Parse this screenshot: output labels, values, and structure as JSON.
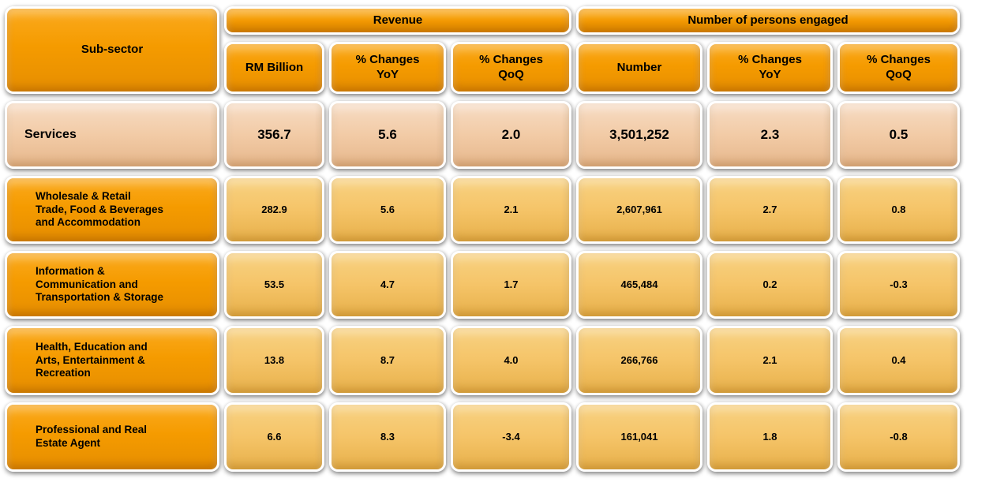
{
  "colors": {
    "header_orange": "#F59B00",
    "services_fill": "#F2CBA6",
    "data_fill": "#F5C468",
    "cell_border": "#FFFFFF",
    "text": "#000000"
  },
  "chart_data": {
    "type": "table",
    "corner_header": "Sub-sector",
    "column_groups": [
      {
        "label": "Revenue",
        "columns": [
          "RM Billion",
          "% Changes\nYoY",
          "% Changes\nQoQ"
        ]
      },
      {
        "label": "Number of persons engaged",
        "columns": [
          "Number",
          "% Changes\nYoY",
          "% Changes\nQoQ"
        ]
      }
    ],
    "rows": [
      {
        "label": "Services",
        "values": [
          "356.7",
          "5.6",
          "2.0",
          "3,501,252",
          "2.3",
          "0.5"
        ]
      },
      {
        "label": "Wholesale  & Retail\nTrade, Food & Beverages\nand Accommodation",
        "values": [
          "282.9",
          "5.6",
          "2.1",
          "2,607,961",
          "2.7",
          "0.8"
        ]
      },
      {
        "label": "Information  &\nCommunication  and\nTransportation  & Storage",
        "values": [
          "53.5",
          "4.7",
          "1.7",
          "465,484",
          "0.2",
          "-0.3"
        ]
      },
      {
        "label": "Health,  Education  and\nArts, Entertainment  &\nRecreation",
        "values": [
          "13.8",
          "8.7",
          "4.0",
          "266,766",
          "2.1",
          "0.4"
        ]
      },
      {
        "label": "Professional  and  Real\nEstate Agent",
        "values": [
          "6.6",
          "8.3",
          "-3.4",
          "161,041",
          "1.8",
          "-0.8"
        ]
      }
    ]
  }
}
